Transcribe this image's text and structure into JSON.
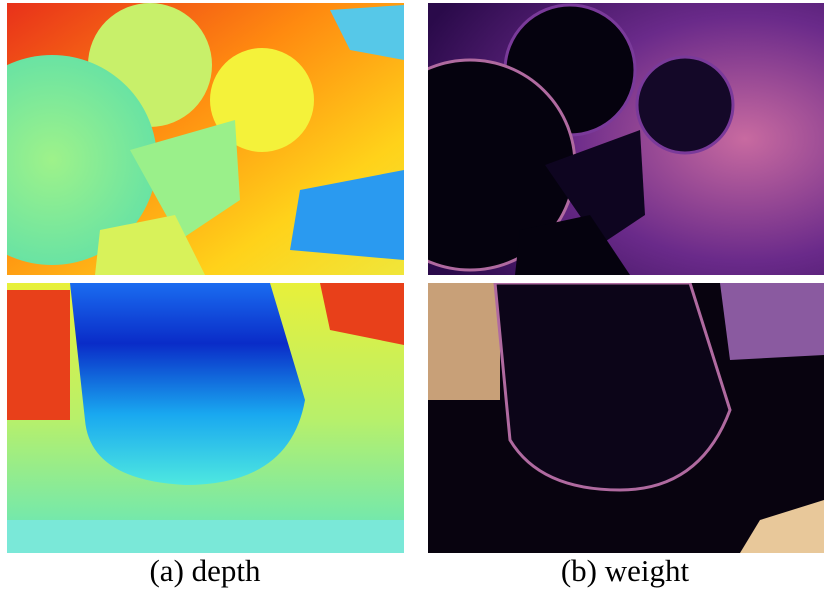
{
  "captions": {
    "a": "(a) depth",
    "b": "(b) weight"
  }
}
